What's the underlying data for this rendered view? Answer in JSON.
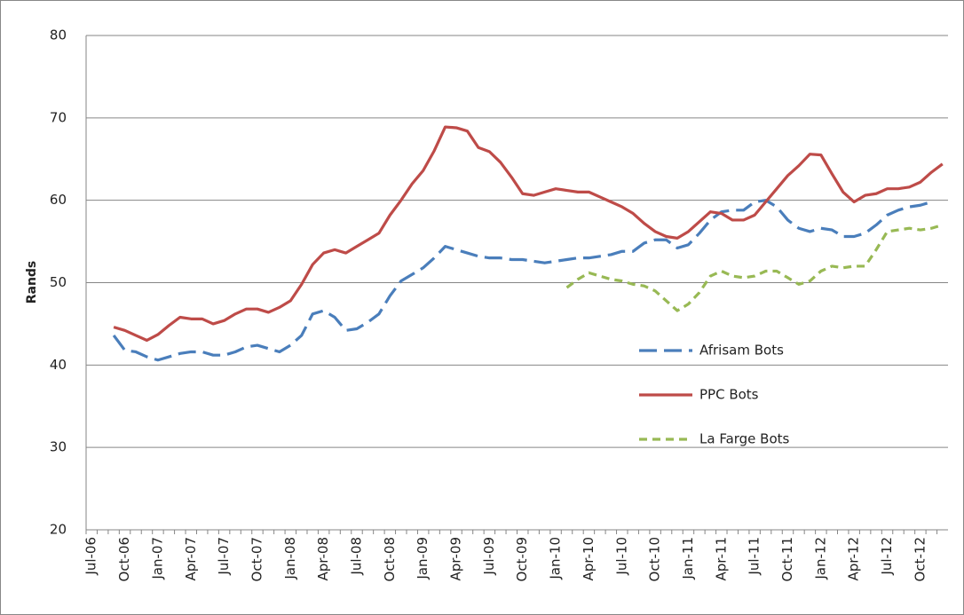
{
  "chart_data": {
    "type": "line",
    "y_label": "Rands",
    "categories": [
      "Jul-06",
      null,
      null,
      "Oct-06",
      null,
      null,
      "Jan-07",
      null,
      null,
      "Apr-07",
      null,
      null,
      "Jul-07",
      null,
      null,
      "Oct-07",
      null,
      null,
      "Jan-08",
      null,
      null,
      "Apr-08",
      null,
      null,
      "Jul-08",
      null,
      null,
      "Oct-08",
      null,
      null,
      "Jan-09",
      null,
      null,
      "Apr-09",
      null,
      null,
      "Jul-09",
      null,
      null,
      "Oct-09",
      null,
      null,
      "Jan-10",
      null,
      null,
      "Apr-10",
      null,
      null,
      "Jul-10",
      null,
      null,
      "Oct-10",
      null,
      null,
      "Jan-11",
      null,
      null,
      "Apr-11",
      null,
      null,
      "Jul-11",
      null,
      null,
      "Oct-11",
      null,
      null,
      "Jan-12",
      null,
      null,
      "Apr-12",
      null,
      null,
      "Jul-12",
      null,
      null,
      "Oct-12",
      null,
      null
    ],
    "series": [
      {
        "name": "Afrisam Bots",
        "color": "#4a7ebb",
        "dash": "long",
        "values": [
          null,
          null,
          43.6,
          41.8,
          41.6,
          41.0,
          40.6,
          41.0,
          41.4,
          41.6,
          41.6,
          41.2,
          41.2,
          41.6,
          42.2,
          42.4,
          42.0,
          41.6,
          42.4,
          43.6,
          46.2,
          46.6,
          45.8,
          44.2,
          44.4,
          45.2,
          46.2,
          48.4,
          50.2,
          51.0,
          51.8,
          53.0,
          54.4,
          54.0,
          53.6,
          53.2,
          53.0,
          53.0,
          52.8,
          52.8,
          52.6,
          52.4,
          52.6,
          52.8,
          53.0,
          53.0,
          53.2,
          53.4,
          53.8,
          53.8,
          54.8,
          55.2,
          55.2,
          54.2,
          54.6,
          56.0,
          57.6,
          58.6,
          58.8,
          58.8,
          59.8,
          60.0,
          59.2,
          57.6,
          56.6,
          56.2,
          56.6,
          56.4,
          55.6,
          55.6,
          56.0,
          57.0,
          58.2,
          58.8,
          59.2,
          59.4,
          59.8,
          null
        ]
      },
      {
        "name": "PPC Bots",
        "color": "#be4b48",
        "dash": "solid",
        "values": [
          null,
          null,
          44.6,
          44.2,
          43.6,
          43.0,
          43.7,
          44.8,
          45.8,
          45.6,
          45.6,
          45.0,
          45.4,
          46.2,
          46.8,
          46.8,
          46.4,
          47.0,
          47.8,
          49.8,
          52.2,
          53.6,
          54.0,
          53.6,
          54.4,
          55.2,
          56.0,
          58.2,
          60.0,
          62.0,
          63.6,
          66.0,
          68.9,
          68.8,
          68.4,
          66.4,
          65.9,
          64.6,
          62.8,
          60.8,
          60.6,
          61.0,
          61.4,
          61.2,
          61.0,
          61.0,
          60.4,
          59.8,
          59.2,
          58.4,
          57.2,
          56.2,
          55.6,
          55.4,
          56.2,
          57.4,
          58.6,
          58.4,
          57.6,
          57.6,
          58.2,
          59.8,
          61.4,
          63.0,
          64.2,
          65.6,
          65.5,
          63.2,
          61.0,
          59.8,
          60.6,
          60.8,
          61.4,
          61.4,
          61.6,
          62.2,
          63.4,
          64.4
        ]
      },
      {
        "name": "La Farge Bots",
        "color": "#98b954",
        "dash": "short",
        "values": [
          null,
          null,
          null,
          null,
          null,
          null,
          null,
          null,
          null,
          null,
          null,
          null,
          null,
          null,
          null,
          null,
          null,
          null,
          null,
          null,
          null,
          null,
          null,
          null,
          null,
          null,
          null,
          null,
          null,
          null,
          null,
          null,
          null,
          null,
          null,
          null,
          null,
          null,
          null,
          null,
          null,
          null,
          null,
          49.4,
          50.4,
          51.2,
          50.8,
          50.4,
          50.2,
          49.8,
          49.6,
          49.0,
          47.8,
          46.6,
          47.4,
          48.8,
          50.8,
          51.4,
          50.8,
          50.6,
          50.8,
          51.4,
          51.4,
          50.6,
          49.8,
          50.2,
          51.4,
          52.0,
          51.8,
          52.0,
          52.0,
          54.0,
          56.2,
          56.4,
          56.6,
          56.4,
          56.6,
          57.0
        ]
      }
    ],
    "ylim": [
      20,
      80
    ],
    "yticks": [
      20,
      30,
      40,
      50,
      60,
      70,
      80
    ],
    "grid": true,
    "legend": "right"
  }
}
